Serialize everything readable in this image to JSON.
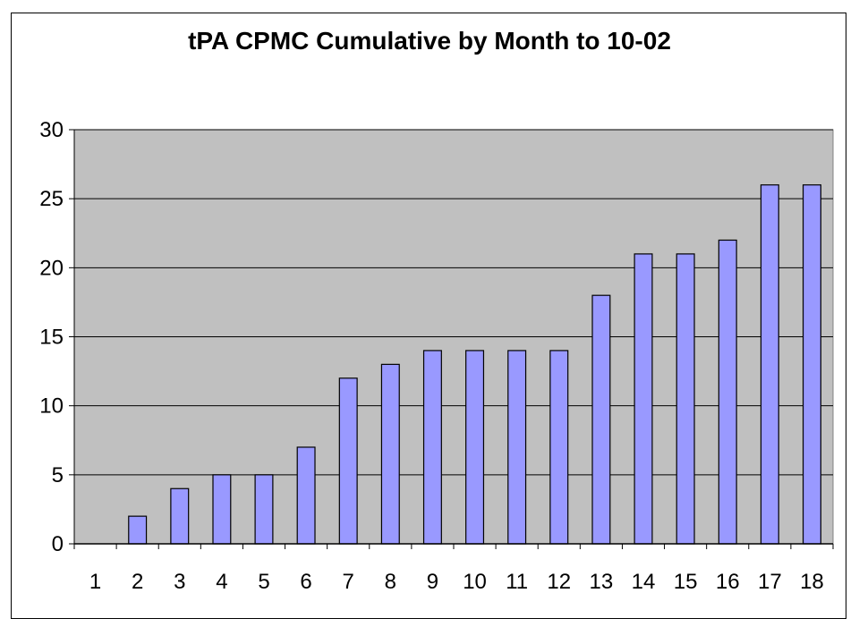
{
  "chart_data": {
    "type": "bar",
    "title": "tPA CPMC Cumulative by Month to 10-02",
    "xlabel": "",
    "ylabel": "",
    "categories": [
      "1",
      "2",
      "3",
      "4",
      "5",
      "6",
      "7",
      "8",
      "9",
      "10",
      "11",
      "12",
      "13",
      "14",
      "15",
      "16",
      "17",
      "18"
    ],
    "values": [
      0,
      2,
      4,
      5,
      5,
      7,
      12,
      13,
      14,
      14,
      14,
      14,
      18,
      21,
      21,
      22,
      26,
      26
    ],
    "ylim": [
      0,
      30
    ],
    "yticks": [
      0,
      5,
      10,
      15,
      20,
      25,
      30
    ],
    "grid": true,
    "legend": "none",
    "colors": {
      "bar_fill": "#9999ff",
      "bar_stroke": "#000000",
      "plot_background": "#c0c0c0",
      "gridline": "#000000"
    }
  }
}
